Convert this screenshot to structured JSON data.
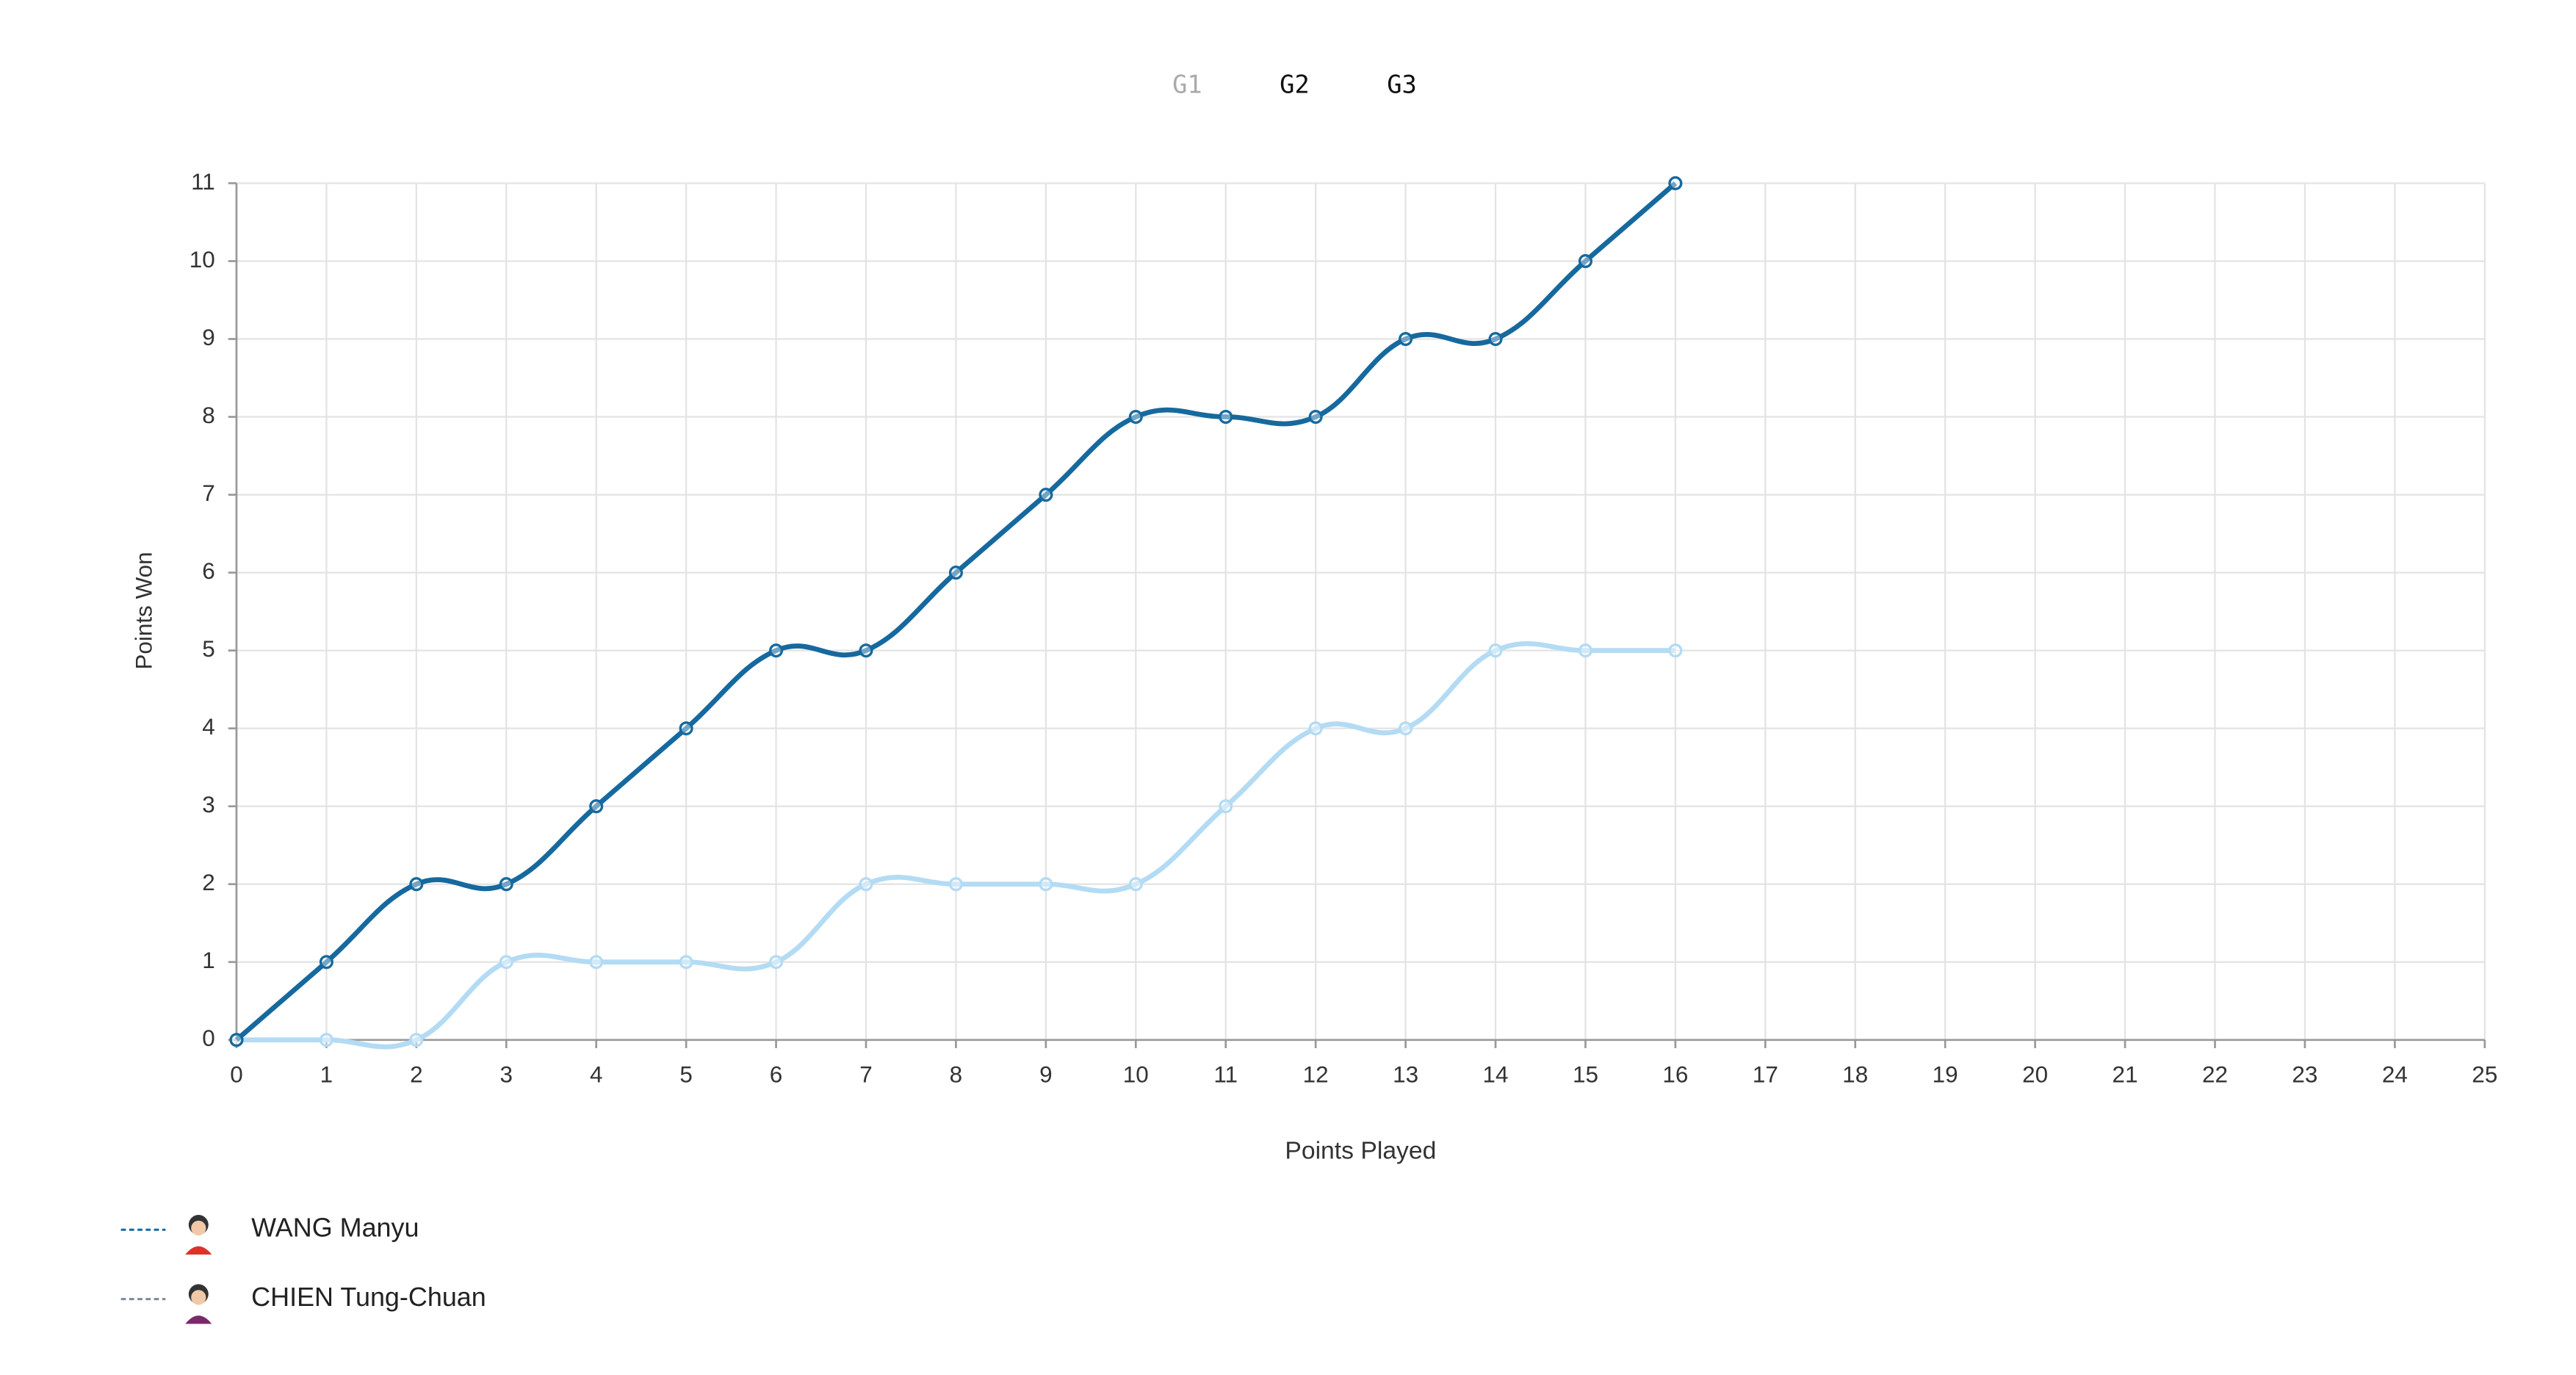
{
  "tabs": [
    "G1",
    "G2",
    "G3"
  ],
  "chart_data": {
    "type": "line",
    "x_label": "Points Played",
    "y_label": "Points Won",
    "x": [
      0,
      1,
      2,
      3,
      4,
      5,
      6,
      7,
      8,
      9,
      10,
      11,
      12,
      13,
      14,
      15,
      16
    ],
    "series": [
      {
        "name": "WANG Manyu",
        "color": "#16699e",
        "values": [
          0,
          1,
          2,
          2,
          3,
          4,
          5,
          5,
          6,
          7,
          8,
          8,
          8,
          9,
          9,
          10,
          11
        ]
      },
      {
        "name": "CHIEN Tung-Chuan",
        "color": "#b3dbf4",
        "values": [
          0,
          0,
          0,
          1,
          1,
          1,
          1,
          2,
          2,
          2,
          2,
          3,
          4,
          4,
          5,
          5,
          5
        ]
      }
    ],
    "xlim": [
      0,
      25
    ],
    "ylim": [
      0,
      11
    ],
    "xticks": [
      0,
      1,
      2,
      3,
      4,
      5,
      6,
      7,
      8,
      9,
      10,
      11,
      12,
      13,
      14,
      15,
      16,
      17,
      18,
      19,
      20,
      21,
      22,
      23,
      24,
      25
    ],
    "yticks": [
      0,
      1,
      2,
      3,
      4,
      5,
      6,
      7,
      8,
      9,
      10,
      11
    ],
    "grid": true
  }
}
